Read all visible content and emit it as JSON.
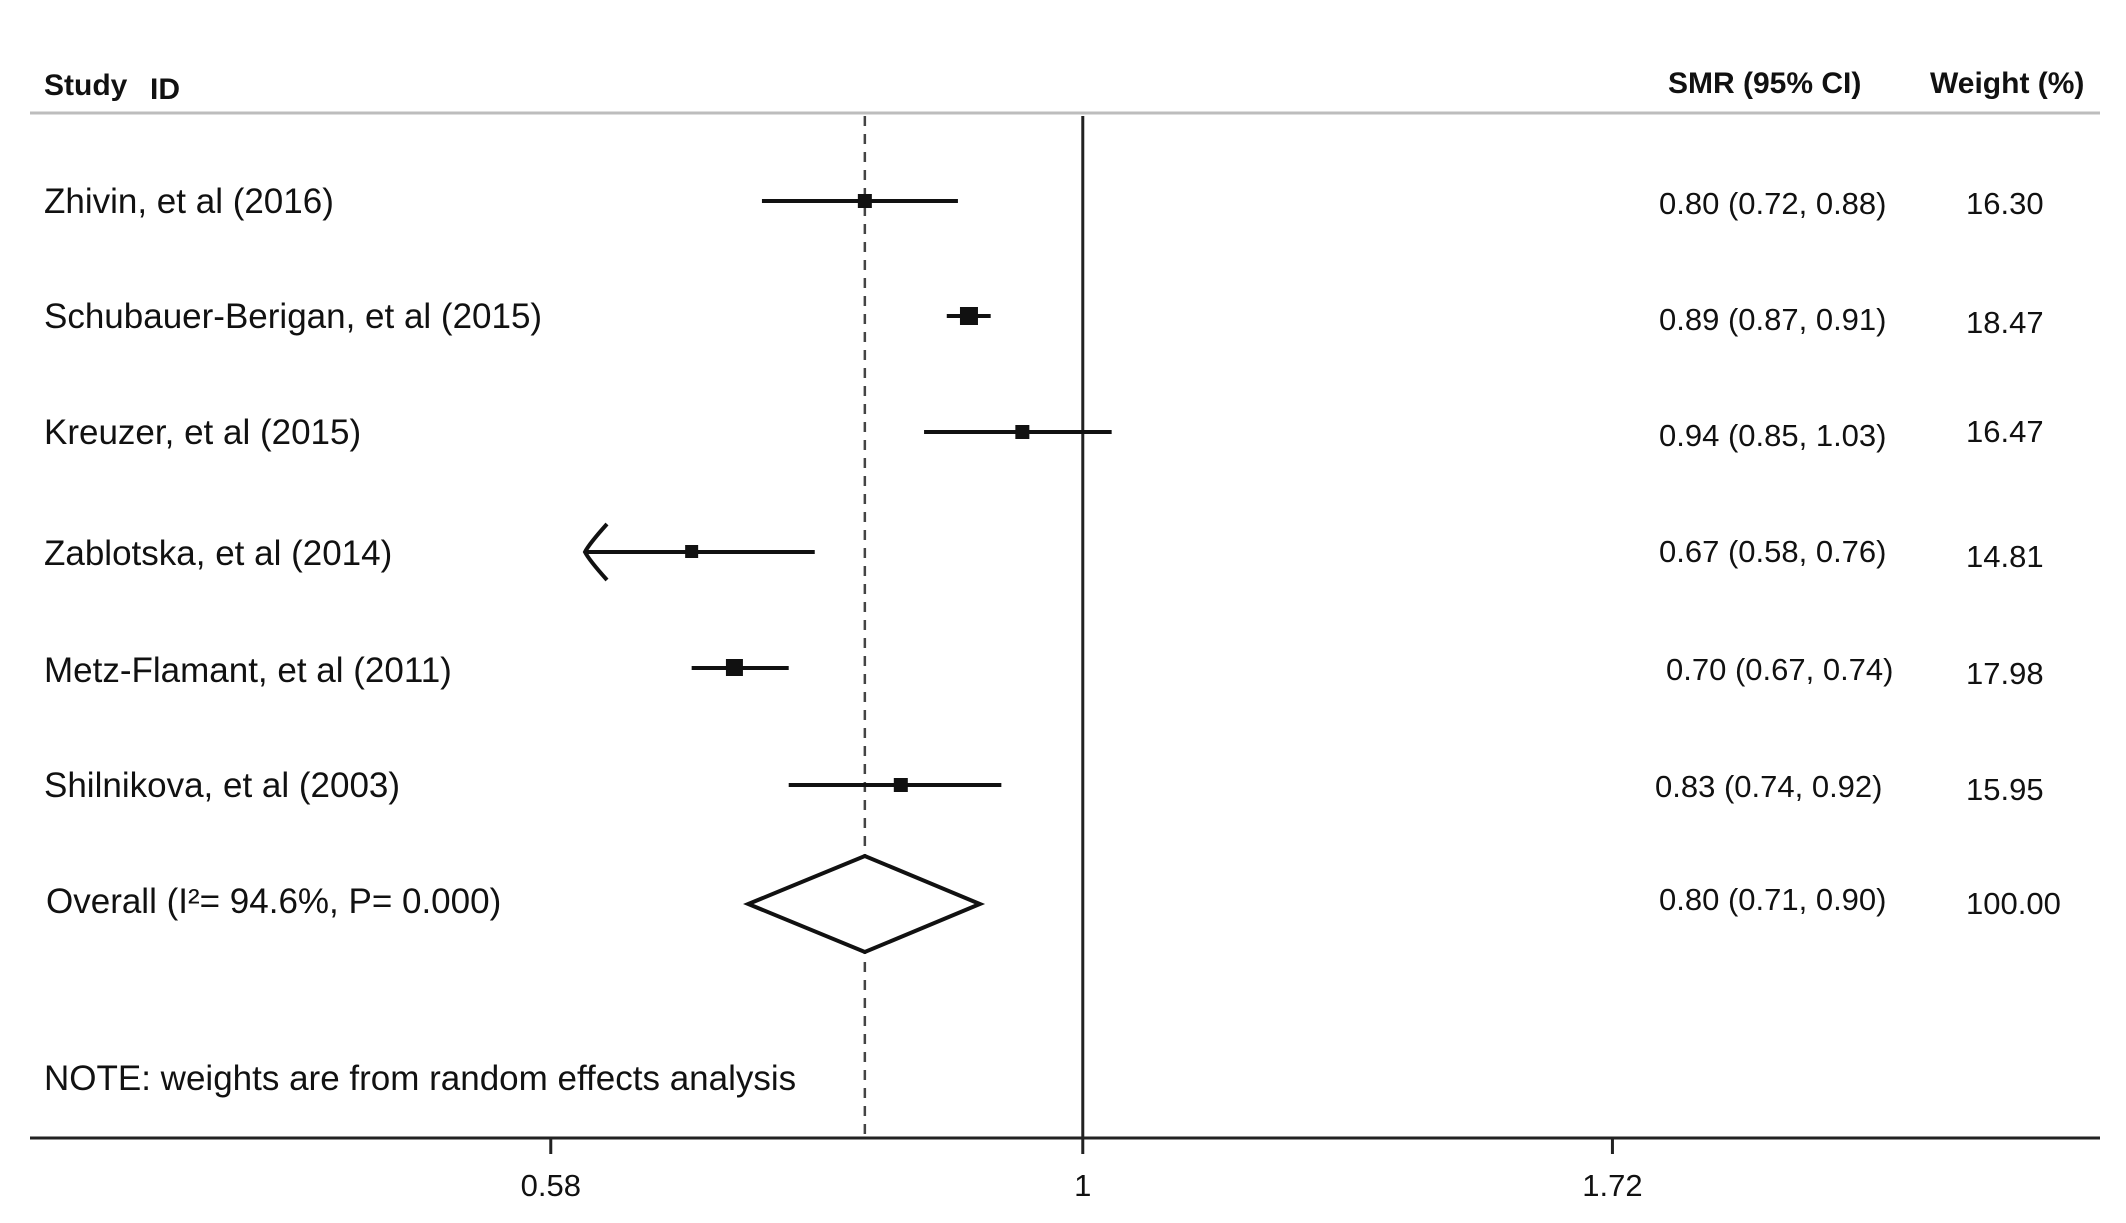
{
  "chart_data": {
    "type": "forest",
    "headers": {
      "study_a": "Study",
      "study_b": "ID",
      "estimate": "SMR (95% CI)",
      "weight": "Weight (%)"
    },
    "scale": "log",
    "xlim": [
      0.33,
      2.91
    ],
    "null_line": 1,
    "summary_line": 0.8,
    "xticks": [
      {
        "value": 0.58,
        "label": "0.58"
      },
      {
        "value": 1,
        "label": "1"
      },
      {
        "value": 1.72,
        "label": "1.72"
      }
    ],
    "studies": [
      {
        "label": "Zhivin, et al (2016)",
        "smr": 0.8,
        "lower": 0.72,
        "upper": 0.88,
        "ci_text": "0.80 (0.72, 0.88)",
        "weight": "16.30",
        "clipped": false
      },
      {
        "label": "Schubauer-Berigan, et al (2015)",
        "smr": 0.89,
        "lower": 0.87,
        "upper": 0.91,
        "ci_text": "0.89 (0.87, 0.91)",
        "weight": "18.47",
        "clipped": false
      },
      {
        "label": "Kreuzer, et al (2015)",
        "smr": 0.94,
        "lower": 0.85,
        "upper": 1.03,
        "ci_text": "0.94 (0.85, 1.03)",
        "weight": "16.47",
        "clipped": false
      },
      {
        "label": "Zablotska, et al (2014)",
        "smr": 0.67,
        "lower": 0.58,
        "upper": 0.76,
        "ci_text": "0.67 (0.58, 0.76)",
        "weight": "14.81",
        "clipped": true
      },
      {
        "label": "Metz-Flamant, et al (2011)",
        "smr": 0.7,
        "lower": 0.67,
        "upper": 0.74,
        "ci_text": "0.70 (0.67, 0.74)",
        "weight": "17.98",
        "clipped": false
      },
      {
        "label": "Shilnikova, et al (2003)",
        "smr": 0.83,
        "lower": 0.74,
        "upper": 0.92,
        "ci_text": "0.83 (0.74, 0.92)",
        "weight": "15.95",
        "clipped": false
      }
    ],
    "overall": {
      "label": "Overall (I²= 94.6%, P= 0.000)",
      "smr": 0.8,
      "lower": 0.71,
      "upper": 0.9,
      "ci_text": "0.80 (0.71, 0.90)",
      "weight": "100.00"
    },
    "note": "NOTE: weights are from random effects analysis"
  }
}
